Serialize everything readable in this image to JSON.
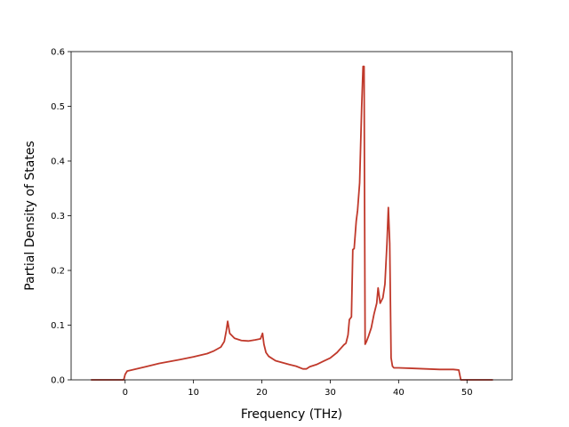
{
  "chart_data": {
    "type": "line",
    "title": "",
    "xlabel": "Frequency (THz)",
    "ylabel": "Partial Density of States",
    "xlim": [
      -7.9,
      56.6
    ],
    "ylim": [
      0,
      0.6
    ],
    "xticks": [
      0,
      10,
      20,
      30,
      40,
      50
    ],
    "yticks": [
      0.0,
      0.1,
      0.2,
      0.3,
      0.4,
      0.5,
      0.6
    ],
    "xtick_labels": [
      "0",
      "10",
      "20",
      "30",
      "40",
      "50"
    ],
    "ytick_labels": [
      "0.0",
      "0.1",
      "0.2",
      "0.3",
      "0.4",
      "0.5",
      "0.6"
    ],
    "grid": false,
    "line_color": "#c0392b",
    "series": [
      {
        "x": [
          -5,
          -0.2,
          0,
          0.3,
          1,
          3,
          5,
          8,
          10,
          12,
          13,
          14,
          14.5,
          14.8,
          15,
          15.3,
          16,
          17,
          18,
          19,
          19.8,
          20.1,
          20.3,
          20.6,
          21,
          22,
          24,
          25,
          26,
          26.5,
          27,
          28,
          29,
          30,
          31,
          31.5,
          32,
          32.3,
          32.6,
          32.8,
          33.1,
          33.3,
          33.5,
          33.8,
          34,
          34.3,
          34.6,
          34.8,
          34.95,
          35.1,
          35.3,
          35.6,
          36,
          36.4,
          36.8,
          37,
          37.3,
          37.7,
          38,
          38.3,
          38.5,
          38.7,
          38.9,
          39.1,
          39.3,
          39.6,
          40,
          42,
          44,
          46,
          48,
          48.8,
          49.1,
          53.8
        ],
        "y": [
          0,
          0,
          0.01,
          0.016,
          0.018,
          0.024,
          0.03,
          0.037,
          0.042,
          0.048,
          0.053,
          0.06,
          0.07,
          0.09,
          0.107,
          0.085,
          0.076,
          0.072,
          0.071,
          0.073,
          0.075,
          0.085,
          0.065,
          0.05,
          0.043,
          0.035,
          0.028,
          0.025,
          0.02,
          0.02,
          0.024,
          0.028,
          0.034,
          0.04,
          0.05,
          0.057,
          0.064,
          0.067,
          0.082,
          0.11,
          0.115,
          0.238,
          0.24,
          0.29,
          0.31,
          0.36,
          0.5,
          0.573,
          0.573,
          0.065,
          0.07,
          0.08,
          0.095,
          0.12,
          0.14,
          0.168,
          0.14,
          0.15,
          0.175,
          0.25,
          0.315,
          0.25,
          0.04,
          0.025,
          0.022,
          0.022,
          0.022,
          0.021,
          0.02,
          0.019,
          0.019,
          0.018,
          0,
          0
        ]
      }
    ]
  }
}
